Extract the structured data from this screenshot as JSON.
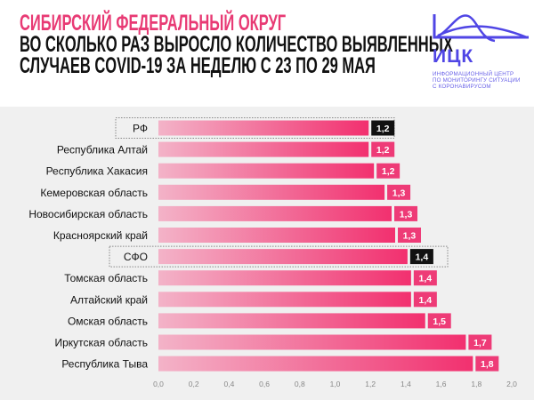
{
  "header": {
    "title": "СИБИРСКИЙ ФЕДЕРАЛЬНЫЙ ОКРУГ",
    "subtitle_line1": "ВО СКОЛЬКО РАЗ ВЫРОСЛО КОЛИЧЕСТВО ВЫЯВЛЕННЫХ",
    "subtitle_line2": "СЛУЧАЕВ COVID-19 ЗА НЕДЕЛЮ С 23 ПО 29 МАЯ"
  },
  "logo": {
    "name": "ИЦК",
    "tagline_line1": "информационный центр",
    "tagline_line2": "по мониторингу ситуации",
    "tagline_line3": "с коронавирусом",
    "color": "#5046e5"
  },
  "colors": {
    "title": "#e83a74",
    "bar_start": "#f3b3c8",
    "bar_end": "#f2306f",
    "label_box": "#ee3b77",
    "highlight_box": "#111111",
    "background": "#f0f0f0"
  },
  "chart_data": {
    "type": "bar",
    "orientation": "horizontal",
    "categories": [
      "РФ",
      "Республика Алтай",
      "Республика Хакасия",
      "Кемеровская область",
      "Новосибирская область",
      "Красноярский край",
      "СФО",
      "Томская область",
      "Алтайский край",
      "Омская область",
      "Иркутская область",
      "Республика Тыва"
    ],
    "values": [
      1.19,
      1.19,
      1.22,
      1.28,
      1.32,
      1.34,
      1.41,
      1.43,
      1.43,
      1.51,
      1.74,
      1.78
    ],
    "data_labels": [
      "1,2",
      "1,2",
      "1,2",
      "1,3",
      "1,3",
      "1,3",
      "1,4",
      "1,4",
      "1,4",
      "1,5",
      "1,7",
      "1,8"
    ],
    "highlighted": [
      "РФ",
      "СФО"
    ],
    "xlim": [
      0,
      2.0
    ],
    "x_ticks": [
      "0,0",
      "0,2",
      "0,4",
      "0,6",
      "0,8",
      "1,0",
      "1,2",
      "1,4",
      "1,6",
      "1,8",
      "2,0"
    ],
    "grid": false,
    "legend": "none"
  }
}
